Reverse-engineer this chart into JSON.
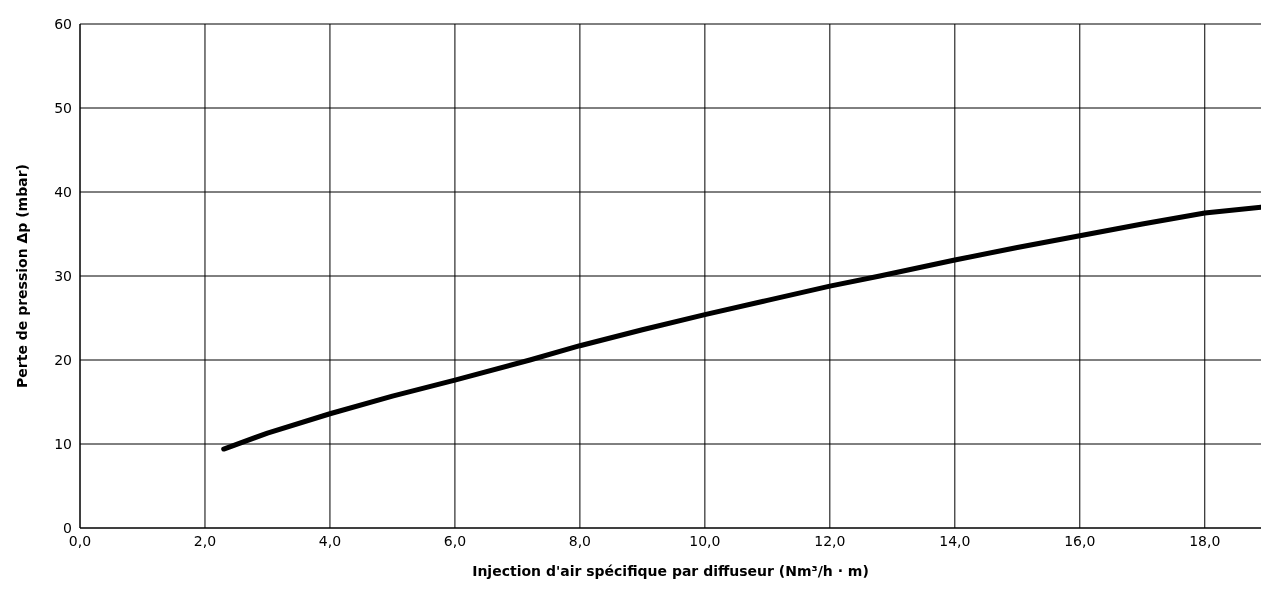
{
  "chart_data": {
    "type": "line",
    "xlabel": "Injection d'air spécifique par diffuseur (Nm³/h · m)",
    "ylabel": "Perte de pression Δp (mbar)",
    "x": [
      2.3,
      3,
      4,
      5,
      6,
      7.2,
      8,
      9,
      10,
      11,
      12,
      12.8,
      14,
      15,
      16,
      17,
      18,
      18.9
    ],
    "series": [
      {
        "color": "#000000",
        "values": [
          9.4,
          11.3,
          13.6,
          15.7,
          17.6,
          20,
          21.7,
          23.6,
          25.4,
          27.1,
          28.8,
          30,
          31.9,
          33.4,
          34.8,
          36.2,
          37.5,
          38.2
        ]
      }
    ],
    "xlim": [
      0,
      18.9
    ],
    "xticks": [
      {
        "value": 0,
        "label": "0,0"
      },
      {
        "value": 2,
        "label": "2,0"
      },
      {
        "value": 4,
        "label": "4,0"
      },
      {
        "value": 6,
        "label": "6,0"
      },
      {
        "value": 8,
        "label": "8,0"
      },
      {
        "value": 10,
        "label": "10,0"
      },
      {
        "value": 12,
        "label": "12,0"
      },
      {
        "value": 14,
        "label": "14,0"
      },
      {
        "value": 16,
        "label": "16,0"
      },
      {
        "value": 18,
        "label": "18,0"
      }
    ],
    "ylim": [
      0,
      60
    ],
    "yticks": [
      0,
      10,
      20,
      30,
      40,
      50,
      60
    ],
    "grid": true,
    "legend": false,
    "marker": "none",
    "line_style": "solid"
  }
}
